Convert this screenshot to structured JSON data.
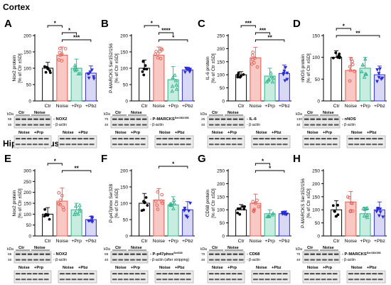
{
  "sections": [
    "Cortex",
    "Hippocampus"
  ],
  "conditions": [
    "Ctr",
    "Noise",
    "+Prp",
    "+Pbz"
  ],
  "colors": {
    "Ctr": "#000000",
    "Noise": "#e8594f",
    "+Prp": "#2bb38a",
    "+Pbz": "#2a2ad6",
    "Ctr_fill": "#ffffff",
    "Noise_fill": "#f8c9c4",
    "+Prp_fill": "#c9ece0",
    "+Pbz_fill": "#d8d8f4"
  },
  "blot_headers": {
    "top_groups": [
      "Ctr",
      "Noise"
    ],
    "bottom_groups": [
      "Noise",
      "+Prp",
      "Noise",
      "+Pbz"
    ],
    "loading_control": "β-actin",
    "kda_label": "kDa",
    "loading_control_after_stripping": "β-actin (after stripping)"
  },
  "chart_data": [
    {
      "panel": "A",
      "section": "Cortex",
      "type": "bar",
      "categories": [
        "Ctr",
        "Noise",
        "+Prp",
        "+Pbz"
      ],
      "values": [
        100,
        140,
        100,
        85
      ],
      "errors": [
        18,
        25,
        28,
        22
      ],
      "ylabel": "Nox2 protein [% of Ctr ±SD]",
      "ylim": [
        0,
        200
      ],
      "yticks": [
        0,
        50,
        100,
        150,
        200
      ],
      "significance": [
        {
          "from": 0,
          "to": 1,
          "label": "*"
        },
        {
          "from": 1,
          "to": 2,
          "label": "*"
        },
        {
          "from": 1,
          "to": 3,
          "label": "***"
        }
      ],
      "blot": {
        "target": "NOX2",
        "target_sup": "",
        "kda_ticks": [
          "55",
          "40"
        ]
      }
    },
    {
      "panel": "B",
      "section": "Cortex",
      "type": "bar",
      "categories": [
        "Ctr",
        "Noise",
        "+Prp",
        "+Pbz"
      ],
      "values": [
        100,
        140,
        65,
        95
      ],
      "errors": [
        25,
        25,
        40,
        8
      ],
      "ylabel": "P-MARCKS Ser152/156 [% of Ctr ±SD]",
      "ylim": [
        0,
        200
      ],
      "yticks": [
        0,
        50,
        100,
        150,
        200
      ],
      "significance": [
        {
          "from": 0,
          "to": 1,
          "label": "*"
        },
        {
          "from": 1,
          "to": 2,
          "label": "****"
        },
        {
          "from": 1,
          "to": 3,
          "label": "*"
        }
      ],
      "blot": {
        "target": "P-MARCKS",
        "target_sup": "Ser152/156",
        "kda_ticks": [
          "70",
          "40"
        ]
      }
    },
    {
      "panel": "C",
      "section": "Cortex",
      "type": "bar",
      "categories": [
        "Ctr",
        "Noise",
        "+Prp",
        "+Pbz"
      ],
      "values": [
        100,
        165,
        95,
        105
      ],
      "errors": [
        12,
        40,
        30,
        32
      ],
      "ylabel": "IL-6 protein [% of Ctr ±SD]",
      "ylim": [
        0,
        250
      ],
      "yticks": [
        0,
        50,
        100,
        150,
        200,
        250
      ],
      "significance": [
        {
          "from": 0,
          "to": 1,
          "label": "***"
        },
        {
          "from": 1,
          "to": 2,
          "label": "***"
        },
        {
          "from": 1,
          "to": 3,
          "label": "**"
        }
      ],
      "blot": {
        "target": "IL-6",
        "target_sup": "",
        "kda_ticks": [
          "25",
          "40"
        ]
      }
    },
    {
      "panel": "D",
      "section": "Cortex",
      "type": "bar",
      "categories": [
        "Ctr",
        "Noise",
        "+Prp",
        "+Pbz"
      ],
      "values": [
        100,
        70,
        75,
        60
      ],
      "errors": [
        15,
        30,
        25,
        20
      ],
      "ylabel": "nNOS protein [% of Ctr ±SD]",
      "ylim": [
        0,
        150
      ],
      "yticks": [
        0,
        50,
        100,
        150
      ],
      "significance": [
        {
          "from": 0,
          "to": 1,
          "label": "*"
        },
        {
          "from": 0,
          "to": 3,
          "label": "**"
        }
      ],
      "blot": {
        "target": "nNOS",
        "target_sup": "",
        "kda_ticks": [
          "130",
          "40"
        ]
      }
    },
    {
      "panel": "E",
      "section": "Hippocampus",
      "type": "bar",
      "categories": [
        "Ctr",
        "Noise",
        "+Prp",
        "+Pbz"
      ],
      "values": [
        100,
        160,
        120,
        75
      ],
      "errors": [
        30,
        60,
        30,
        15
      ],
      "ylabel": "Nox2 protein [% of Ctr ±SD]",
      "ylim": [
        0,
        300
      ],
      "yticks": [
        0,
        50,
        100,
        150,
        200,
        250,
        300
      ],
      "significance": [
        {
          "from": 0,
          "to": 1,
          "label": "*"
        },
        {
          "from": 1,
          "to": 3,
          "label": "**"
        }
      ],
      "blot": {
        "target": "NOX2",
        "target_sup": "",
        "kda_ticks": [
          "55",
          "40"
        ]
      }
    },
    {
      "panel": "F",
      "section": "Hippocampus",
      "type": "bar",
      "categories": [
        "Ctr",
        "Noise",
        "+Prp",
        "+Pbz"
      ],
      "values": [
        100,
        110,
        95,
        80
      ],
      "errors": [
        30,
        35,
        25,
        25
      ],
      "ylabel": "P-p47phox Ser328 [% of Ctr ±SD]",
      "ylim": [
        0,
        200
      ],
      "yticks": [
        0,
        50,
        100,
        150,
        200
      ],
      "significance": [
        {
          "from": 1,
          "to": 3,
          "label": "*"
        }
      ],
      "blot": {
        "target": "P-p47phox",
        "target_sup": "Ser328",
        "kda_ticks": [
          "55",
          "40"
        ]
      }
    },
    {
      "panel": "G",
      "section": "Hippocampus",
      "type": "bar",
      "categories": [
        "Ctr",
        "Noise",
        "+Prp",
        "+Pbz"
      ],
      "values": [
        100,
        125,
        85,
        85
      ],
      "errors": [
        20,
        35,
        15,
        10
      ],
      "ylabel": "CD68 protein [% of Ctr ±SD]",
      "ylim": [
        0,
        250
      ],
      "yticks": [
        0,
        50,
        100,
        150,
        200,
        250
      ],
      "significance": [
        {
          "from": 1,
          "to": 2,
          "label": "*"
        },
        {
          "from": 1,
          "to": 3,
          "label": "*"
        }
      ],
      "blot": {
        "target": "CD68",
        "target_sup": "",
        "kda_ticks": [
          "70",
          "40"
        ]
      }
    },
    {
      "panel": "H",
      "section": "Hippocampus",
      "type": "bar",
      "categories": [
        "Ctr",
        "Noise",
        "+Prp",
        "+Pbz"
      ],
      "values": [
        100,
        130,
        85,
        100
      ],
      "errors": [
        35,
        40,
        25,
        30
      ],
      "ylabel": "P-MARCKS Ser152/156 [% of Ctr ±SD]",
      "ylim": [
        0,
        250
      ],
      "yticks": [
        0,
        50,
        100,
        150,
        200,
        250
      ],
      "significance": [],
      "blot": {
        "target": "P-MARCKS",
        "target_sup": "Ser152/156",
        "kda_ticks": [
          "70",
          "40"
        ]
      }
    }
  ]
}
